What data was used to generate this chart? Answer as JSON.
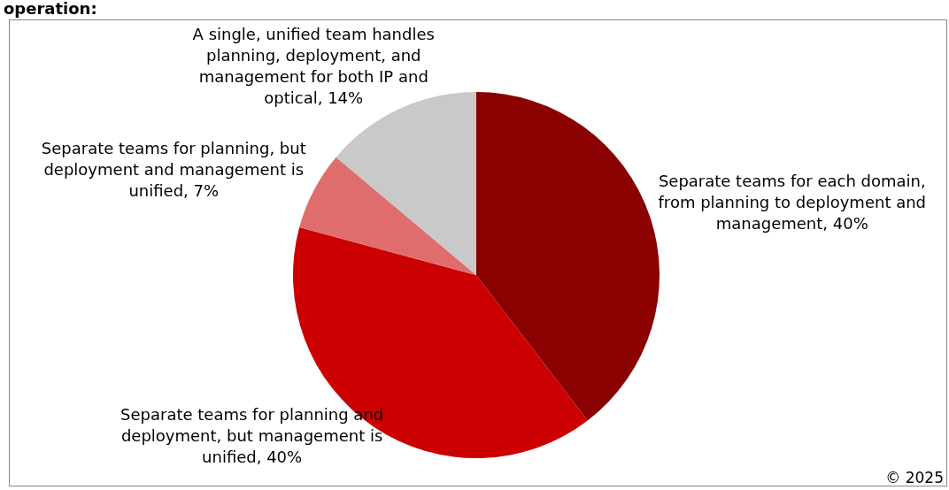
{
  "chart_data": {
    "type": "pie",
    "title": "operation:",
    "categories": [
      "Separate teams for each domain, from planning to deployment and management, 40%",
      "Separate teams for planning and deployment, but management is unified, 40%",
      "Separate teams for planning, but deployment and management is unified, 7%",
      "A single, unified team handles planning, deployment, and management for both IP and optical, 14%"
    ],
    "values": [
      40,
      40,
      7,
      14
    ],
    "colors": [
      "#8b0000",
      "#cc0000",
      "#e06d6d",
      "#c9c9c9"
    ],
    "annotations": [
      "© 2025"
    ],
    "legend": false
  }
}
